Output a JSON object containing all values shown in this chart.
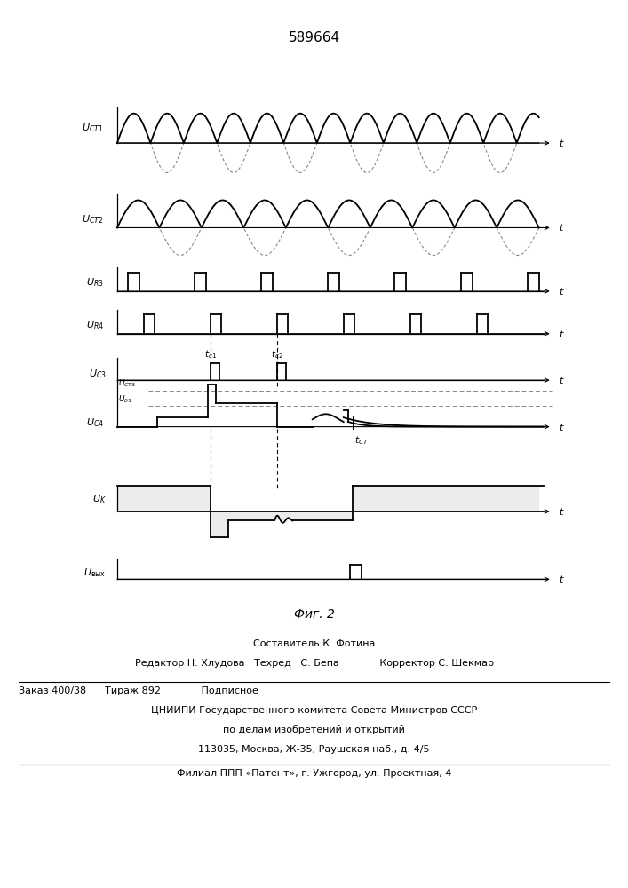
{
  "title": "589664",
  "fig_label": "Фиг. 2",
  "background_color": "#ffffff",
  "footer_lines": [
    "Составитель К. Фотина",
    "Редактор Н. Хлудова   Техред   С. Бепа             Корректор С. Шекмар",
    "Заказ 400/38      Тираж 892             Подписное",
    "ЦНИИПИ Государственного комитета Совета Министров СССР",
    "по делам изобретений и открытий",
    "113035, Москва, Ж-35, Раушская наб., д. 4/5",
    "Филиал ППП «Патент», г. Ужгород, ул. Проектная, 4"
  ]
}
